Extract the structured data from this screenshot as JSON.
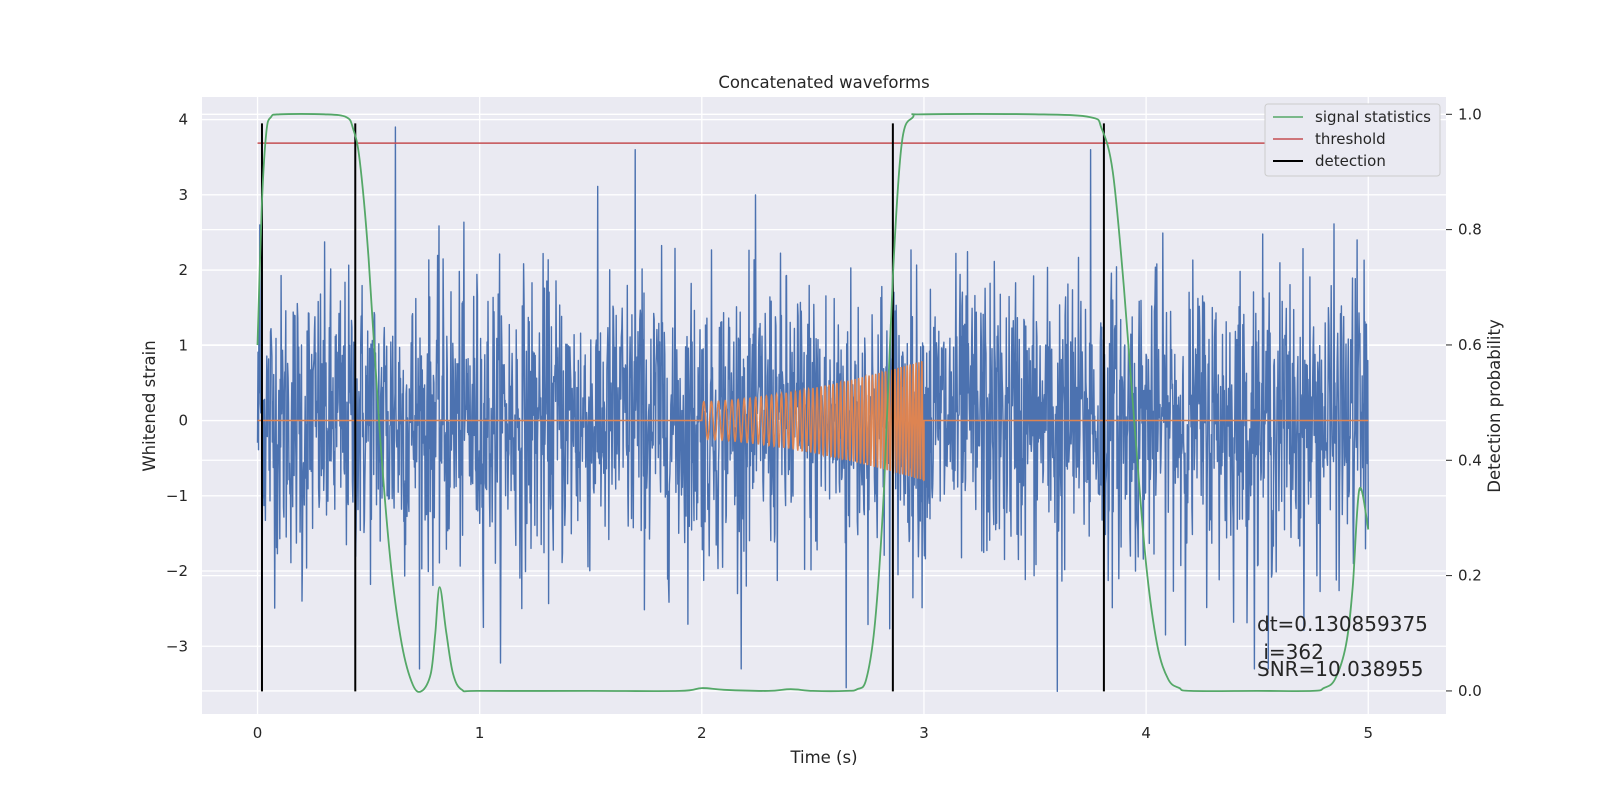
{
  "chart_data": {
    "type": "line",
    "title": "Concatenated waveforms",
    "xlabel": "Time (s)",
    "ylabel": "Whitened strain",
    "y2label": "Detection probability",
    "xlim": [
      -0.25,
      5.35
    ],
    "ylim": [
      -3.9,
      4.3
    ],
    "y2lim": [
      -0.04,
      1.03
    ],
    "xticks": [
      "0",
      "1",
      "2",
      "3",
      "4",
      "5"
    ],
    "yticks": [
      "−3",
      "−2",
      "−1",
      "0",
      "1",
      "2",
      "3",
      "4"
    ],
    "y2ticks": [
      "0.0",
      "0.2",
      "0.4",
      "0.6",
      "0.8",
      "1.0"
    ],
    "grid": true,
    "legend_position": "top-right",
    "colors": {
      "strain": "#4c72b0",
      "template": "#dd8452",
      "signal_statistics": "#55a868",
      "threshold": "#c44e52",
      "detection": "#000000",
      "background": "#eaeaf2"
    },
    "series": [
      {
        "id": "whitened-strain",
        "axis": "left",
        "x_range": [
          0,
          5
        ],
        "notable_peaks": [
          {
            "x": 0.01,
            "y": 2.6
          },
          {
            "x": 0.62,
            "y": 3.9
          },
          {
            "x": 1.7,
            "y": 3.6
          },
          {
            "x": 3.75,
            "y": 3.6
          },
          {
            "x": 2.65,
            "y": -3.55
          },
          {
            "x": 3.6,
            "y": -3.6
          },
          {
            "x": 4.55,
            "y": -3.3
          },
          {
            "x": 0.2,
            "y": -2.4
          },
          {
            "x": 4.95,
            "y": 2.4
          }
        ],
        "typical_amplitude": 1.5
      },
      {
        "id": "injected-chirp",
        "axis": "left",
        "x_range": [
          2.0,
          3.0
        ],
        "amplitude_start": 0.25,
        "amplitude_end": 0.8,
        "baseline": 0
      },
      {
        "name": "signal statistics",
        "axis": "right",
        "x": [
          0,
          0.02,
          0.04,
          0.06,
          0.1,
          0.3,
          0.4,
          0.43,
          0.46,
          0.5,
          0.55,
          0.6,
          0.65,
          0.7,
          0.74,
          0.78,
          0.8,
          0.82,
          0.85,
          0.88,
          0.92,
          1.0,
          1.5,
          1.9,
          2.0,
          2.1,
          2.3,
          2.4,
          2.5,
          2.65,
          2.7,
          2.74,
          2.78,
          2.82,
          2.86,
          2.9,
          2.95,
          3.0,
          3.5,
          3.75,
          3.8,
          3.85,
          3.9,
          3.95,
          4.0,
          4.05,
          4.1,
          4.15,
          4.2,
          4.5,
          4.75,
          4.8,
          4.85,
          4.9,
          4.93,
          4.96,
          5.0
        ],
        "y": [
          0.6,
          0.85,
          0.97,
          0.995,
          1.0,
          1.0,
          0.995,
          0.975,
          0.92,
          0.75,
          0.45,
          0.22,
          0.08,
          0.01,
          0.0,
          0.03,
          0.1,
          0.18,
          0.1,
          0.03,
          0.002,
          0.0,
          0.0,
          0.0,
          0.005,
          0.002,
          0.0,
          0.003,
          0.0,
          0.0,
          0.003,
          0.02,
          0.12,
          0.35,
          0.72,
          0.95,
          0.995,
          1.0,
          1.0,
          0.995,
          0.975,
          0.9,
          0.7,
          0.45,
          0.22,
          0.08,
          0.02,
          0.005,
          0.0,
          0.0,
          0.0,
          0.005,
          0.02,
          0.08,
          0.18,
          0.35,
          0.28
        ]
      },
      {
        "name": "threshold",
        "axis": "right",
        "x": [
          0,
          5
        ],
        "y": [
          0.95,
          0.95
        ]
      },
      {
        "name": "detection",
        "axis": "left",
        "type": "vlines",
        "x": [
          0.02,
          0.44,
          2.86,
          3.81
        ],
        "ymin": -3.6,
        "ymax": 3.95
      }
    ],
    "legend": [
      "signal statistics",
      "threshold",
      "detection"
    ],
    "annotations": [
      "dt=0.130859375",
      " i=362",
      "SNR=10.038955"
    ]
  }
}
